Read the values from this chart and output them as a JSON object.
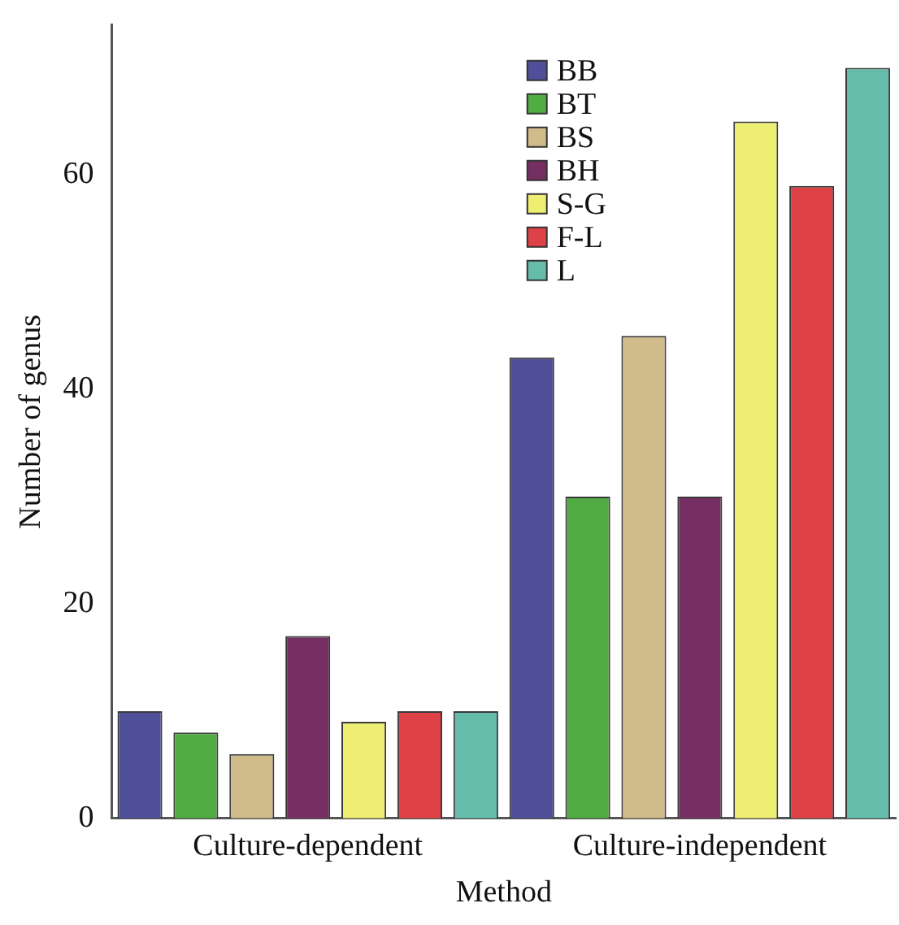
{
  "chart_data": {
    "type": "bar",
    "xlabel": "Method",
    "ylabel": "Number of genus",
    "categories": [
      "Culture-dependent",
      "Culture-independent"
    ],
    "series": [
      {
        "name": "BB",
        "color": "#4f5099",
        "values": [
          10,
          43
        ]
      },
      {
        "name": "BT",
        "color": "#52ac44",
        "values": [
          8,
          30
        ]
      },
      {
        "name": "BS",
        "color": "#d0bc8a",
        "values": [
          6,
          45
        ]
      },
      {
        "name": "BH",
        "color": "#762f62",
        "values": [
          17,
          30
        ]
      },
      {
        "name": "S-G",
        "color": "#eeee72",
        "values": [
          9,
          65
        ]
      },
      {
        "name": "F-L",
        "color": "#de4146",
        "values": [
          10,
          59
        ]
      },
      {
        "name": "L",
        "color": "#65bcab",
        "values": [
          10,
          70
        ]
      }
    ],
    "ylim": [
      0,
      74
    ],
    "yticks": [
      0,
      20,
      40,
      60
    ],
    "grid": false,
    "legend": "top right"
  }
}
